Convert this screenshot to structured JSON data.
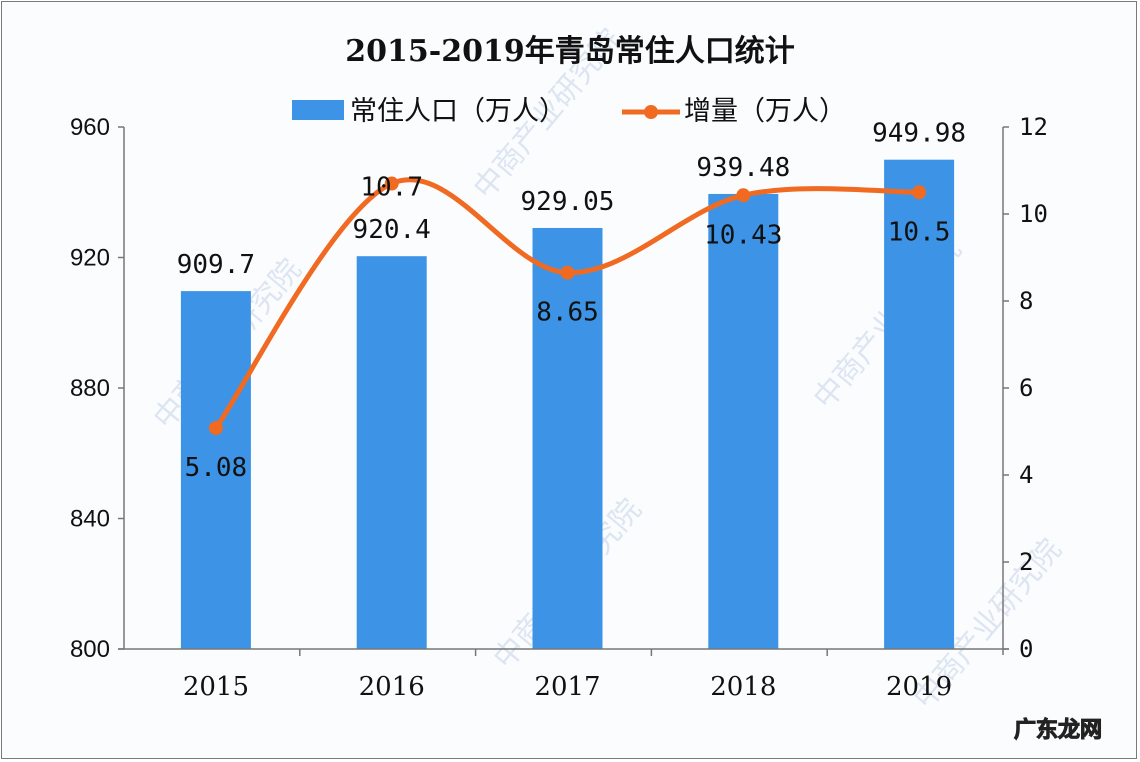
{
  "chart_data": {
    "type": "bar+line",
    "title": "2015-2019年青岛常住人口统计",
    "categories": [
      "2015",
      "2016",
      "2017",
      "2018",
      "2019"
    ],
    "series": [
      {
        "name": "常住人口（万人）",
        "type": "bar",
        "axis": "left",
        "color": "#3d94e6",
        "values": [
          909.7,
          920.4,
          929.05,
          939.48,
          949.98
        ]
      },
      {
        "name": "增量（万人）",
        "type": "line",
        "axis": "right",
        "color": "#f06a22",
        "values": [
          5.08,
          10.7,
          8.65,
          10.43,
          10.5
        ]
      }
    ],
    "left_axis": {
      "range": [
        800,
        960
      ],
      "ticks": [
        800,
        840,
        880,
        920,
        960
      ]
    },
    "right_axis": {
      "range": [
        0,
        12
      ],
      "ticks": [
        0,
        2,
        4,
        6,
        8,
        10,
        12
      ]
    },
    "legend_position": "top",
    "grid": false
  },
  "labels": {
    "bar_labels": [
      "909.7",
      "920.4",
      "929.05",
      "939.48",
      "949.98"
    ],
    "line_labels": [
      "5.08",
      "10.7",
      "8.65",
      "10.43",
      "10.5"
    ]
  },
  "watermark": "中商产业研究院",
  "credit": "广东龙网"
}
